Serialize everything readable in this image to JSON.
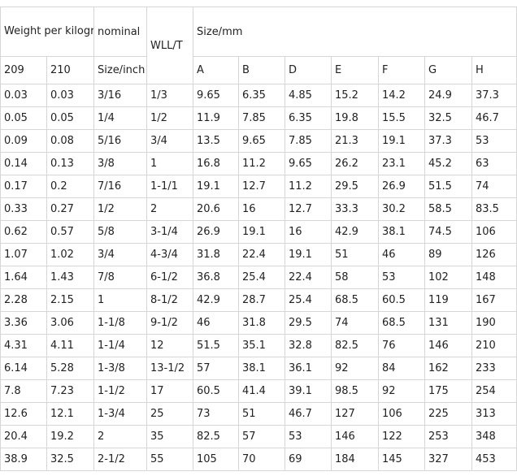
{
  "table": {
    "header": {
      "weight_per_kilogram": "Weight per kilogram",
      "nominal": "nominal",
      "size_inch": "Size/inch",
      "wll": "WLL/T",
      "size_mm": "Size/mm",
      "col_209": "209",
      "col_210": "210",
      "mm_cols": [
        "A",
        "B",
        "D",
        "E",
        "F",
        "G",
        "H"
      ]
    },
    "rows": [
      [
        "0.03",
        "0.03",
        "3/16",
        "1/3",
        "9.65",
        "6.35",
        "4.85",
        "15.2",
        "14.2",
        "24.9",
        "37.3"
      ],
      [
        "0.05",
        "0.05",
        "1/4",
        "1/2",
        "11.9",
        "7.85",
        "6.35",
        "19.8",
        "15.5",
        "32.5",
        "46.7"
      ],
      [
        "0.09",
        "0.08",
        "5/16",
        "3/4",
        "13.5",
        "9.65",
        "7.85",
        "21.3",
        "19.1",
        "37.3",
        "53"
      ],
      [
        "0.14",
        "0.13",
        "3/8",
        "1",
        "16.8",
        "11.2",
        "9.65",
        "26.2",
        "23.1",
        "45.2",
        "63"
      ],
      [
        "0.17",
        "0.2",
        "7/16",
        "1-1/1",
        "19.1",
        "12.7",
        "11.2",
        "29.5",
        "26.9",
        "51.5",
        "74"
      ],
      [
        "0.33",
        "0.27",
        "1/2",
        "2",
        "20.6",
        "16",
        "12.7",
        "33.3",
        "30.2",
        "58.5",
        "83.5"
      ],
      [
        "0.62",
        "0.57",
        "5/8",
        "3-1/4",
        "26.9",
        "19.1",
        "16",
        "42.9",
        "38.1",
        "74.5",
        "106"
      ],
      [
        "1.07",
        "1.02",
        "3/4",
        "4-3/4",
        "31.8",
        "22.4",
        "19.1",
        "51",
        "46",
        "89",
        "126"
      ],
      [
        "1.64",
        "1.43",
        "7/8",
        "6-1/2",
        "36.8",
        "25.4",
        "22.4",
        "58",
        "53",
        "102",
        "148"
      ],
      [
        "2.28",
        "2.15",
        "1",
        "8-1/2",
        "42.9",
        "28.7",
        "25.4",
        "68.5",
        "60.5",
        "119",
        "167"
      ],
      [
        "3.36",
        "3.06",
        "1-1/8",
        "9-1/2",
        "46",
        "31.8",
        "29.5",
        "74",
        "68.5",
        "131",
        "190"
      ],
      [
        "4.31",
        "4.11",
        "1-1/4",
        "12",
        "51.5",
        "35.1",
        "32.8",
        "82.5",
        "76",
        "146",
        "210"
      ],
      [
        "6.14",
        "5.28",
        "1-3/8",
        "13-1/2",
        "57",
        "38.1",
        "36.1",
        "92",
        "84",
        "162",
        "233"
      ],
      [
        "7.8",
        "7.23",
        "1-1/2",
        "17",
        "60.5",
        "41.4",
        "39.1",
        "98.5",
        "92",
        "175",
        "254"
      ],
      [
        "12.6",
        "12.1",
        "1-3/4",
        "25",
        "73",
        "51",
        "46.7",
        "127",
        "106",
        "225",
        "313"
      ],
      [
        "20.4",
        "19.2",
        "2",
        "35",
        "82.5",
        "57",
        "53",
        "146",
        "122",
        "253",
        "348"
      ],
      [
        "38.9",
        "32.5",
        "2-1/2",
        "55",
        "105",
        "70",
        "69",
        "184",
        "145",
        "327",
        "453"
      ]
    ]
  },
  "colors": {
    "background": "#ffffff",
    "border": "#d6d6d6",
    "text": "#222222"
  }
}
